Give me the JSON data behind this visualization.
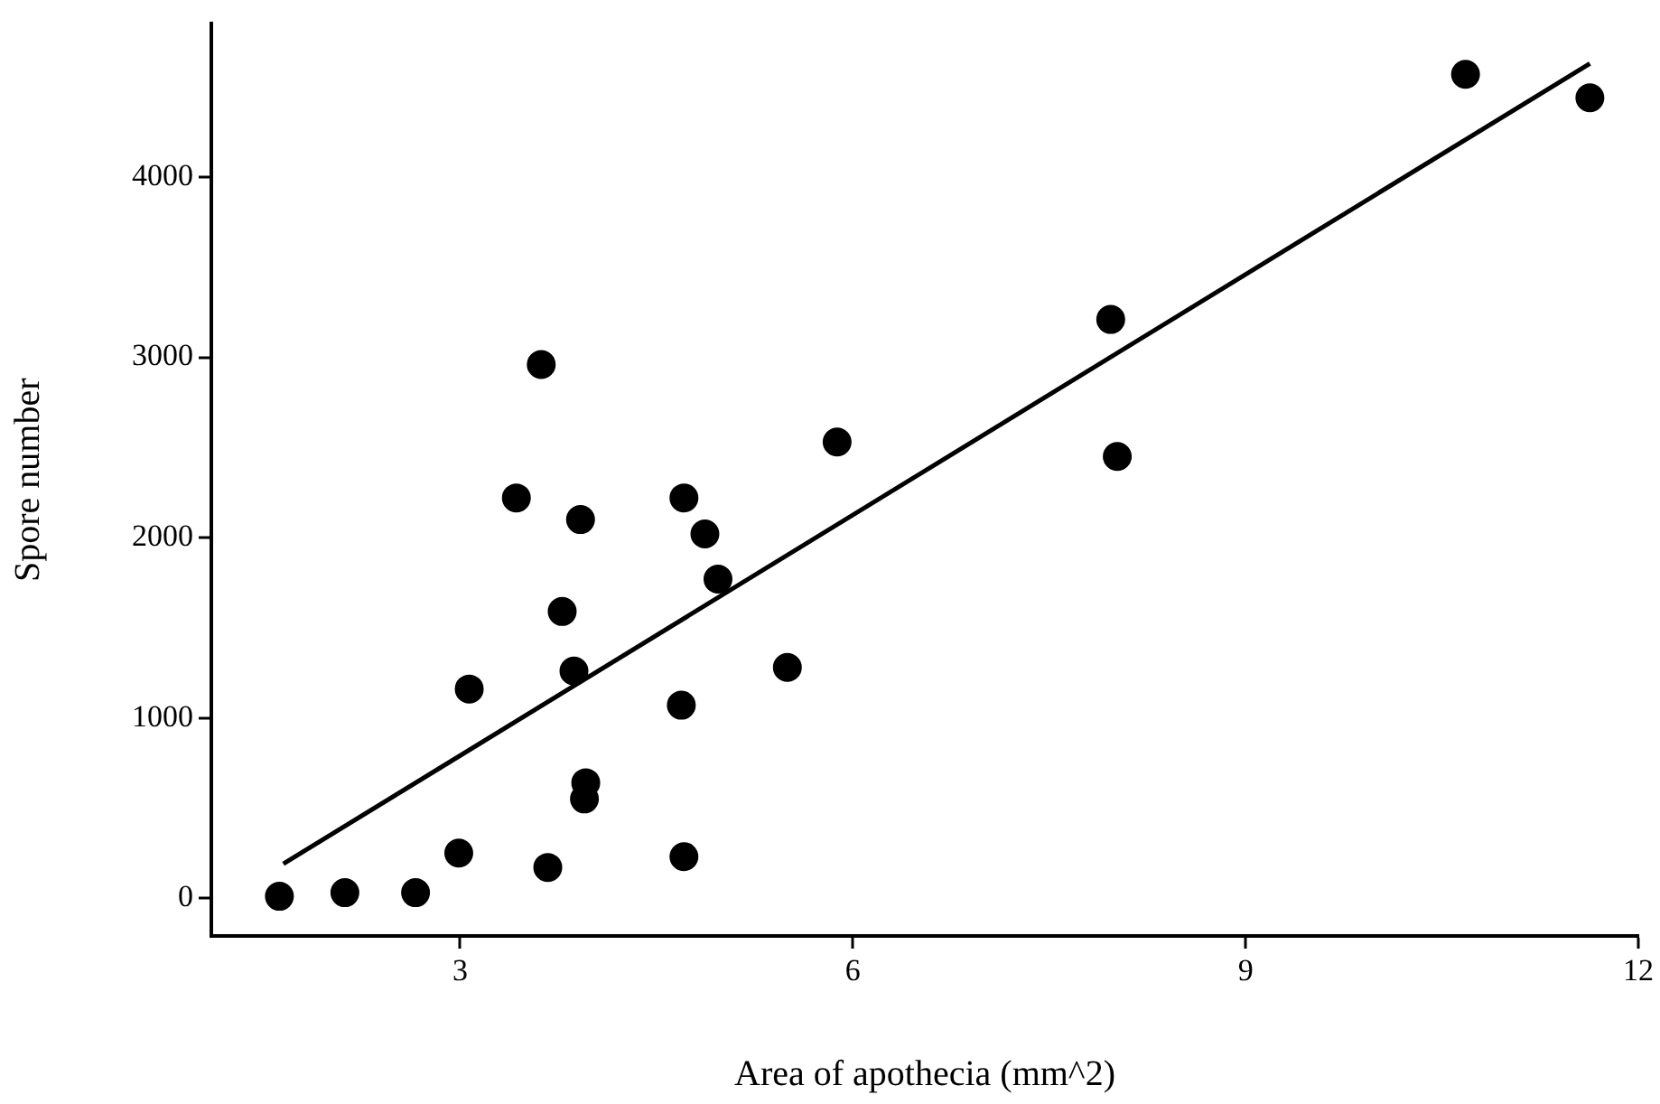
{
  "chart_data": {
    "type": "scatter",
    "xlabel": "Area of apothecia (mm^2)",
    "ylabel": "Spore number",
    "xlim": [
      1.1,
      12
    ],
    "xticks": [
      3,
      6,
      9,
      12
    ],
    "ylim": [
      -210,
      4850
    ],
    "yticks": [
      0,
      1000,
      2000,
      3000,
      4000
    ],
    "grid": false,
    "legend": false,
    "marker": "circle",
    "series": [
      {
        "type": "scatter",
        "color": "#000000",
        "x": [
          1.62,
          2.12,
          2.66,
          2.99,
          3.07,
          3.43,
          3.62,
          3.67,
          3.78,
          3.87,
          3.92,
          3.95,
          3.96,
          4.71,
          4.69,
          4.71,
          4.87,
          4.97,
          5.5,
          5.88,
          7.97,
          8.02,
          10.68,
          11.63
        ],
        "values": [
          10,
          30,
          30,
          250,
          1160,
          2220,
          2960,
          170,
          1590,
          1260,
          2100,
          550,
          640,
          2220,
          1070,
          230,
          2020,
          1770,
          1280,
          2530,
          3210,
          2450,
          4570,
          4440
        ]
      },
      {
        "type": "line",
        "marker": "none",
        "color": "#000000",
        "x": [
          1.65,
          11.63
        ],
        "values": [
          190,
          4630
        ]
      }
    ]
  }
}
